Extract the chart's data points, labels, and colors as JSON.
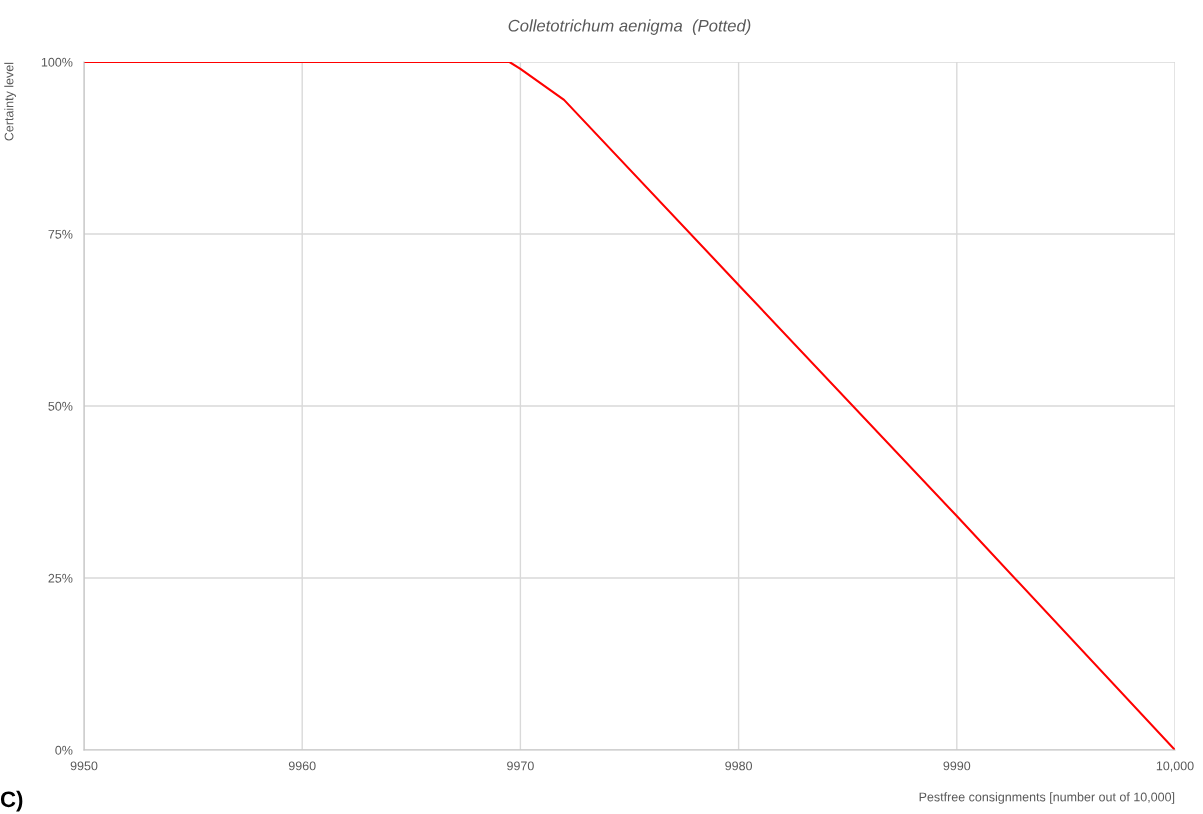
{
  "chart_data": {
    "type": "line",
    "title": "Colletotrichum aenigma  (Potted)",
    "xlabel": "Pestfree consignments [number out of 10,000]",
    "ylabel": "Certainty level",
    "x": [
      9950,
      9969.5,
      9970,
      9972,
      9980,
      9990,
      10000
    ],
    "series": [
      {
        "color": "#ff0000",
        "values": [
          100,
          100,
          99,
          94.5,
          67.6,
          34,
          0
        ]
      }
    ],
    "xlim": [
      9950,
      10000
    ],
    "xticks": [
      9950,
      9960,
      9970,
      9980,
      9990,
      {
        "value": 10000,
        "label": "10,000"
      }
    ],
    "ylim": [
      0,
      100
    ],
    "yticks": [
      {
        "value": 0,
        "label": "0%"
      },
      {
        "value": 25,
        "label": "25%"
      },
      {
        "value": 50,
        "label": "50%"
      },
      {
        "value": 75,
        "label": "75%"
      },
      {
        "value": 100,
        "label": "100%"
      }
    ],
    "grid": true,
    "marker": "none",
    "line_style": "solid",
    "annotations": [
      "C)"
    ]
  }
}
